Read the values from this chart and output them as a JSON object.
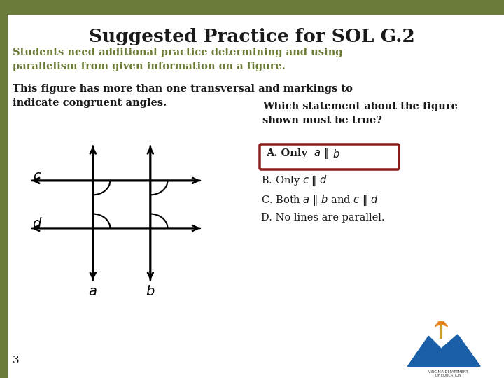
{
  "title": "Suggested Practice for SOL G.2",
  "subtitle": "Students need additional practice determining and using\nparallelism from given information on a figure.",
  "body_text": "This figure has more than one transversal and markings to\nindicate congruent angles.",
  "question": "Which statement about the figure\nshown must be true?",
  "answer_D": "D. No lines are parallel.",
  "slide_number": "3",
  "bg_color": "#ffffff",
  "title_color": "#1a1a1a",
  "subtitle_color": "#6b7c3a",
  "body_color": "#1a1a1a",
  "answer_box_color": "#8b1a1a",
  "green_bar_left_color": "#6b7c3a",
  "green_bar_top_color": "#6b7c3a"
}
